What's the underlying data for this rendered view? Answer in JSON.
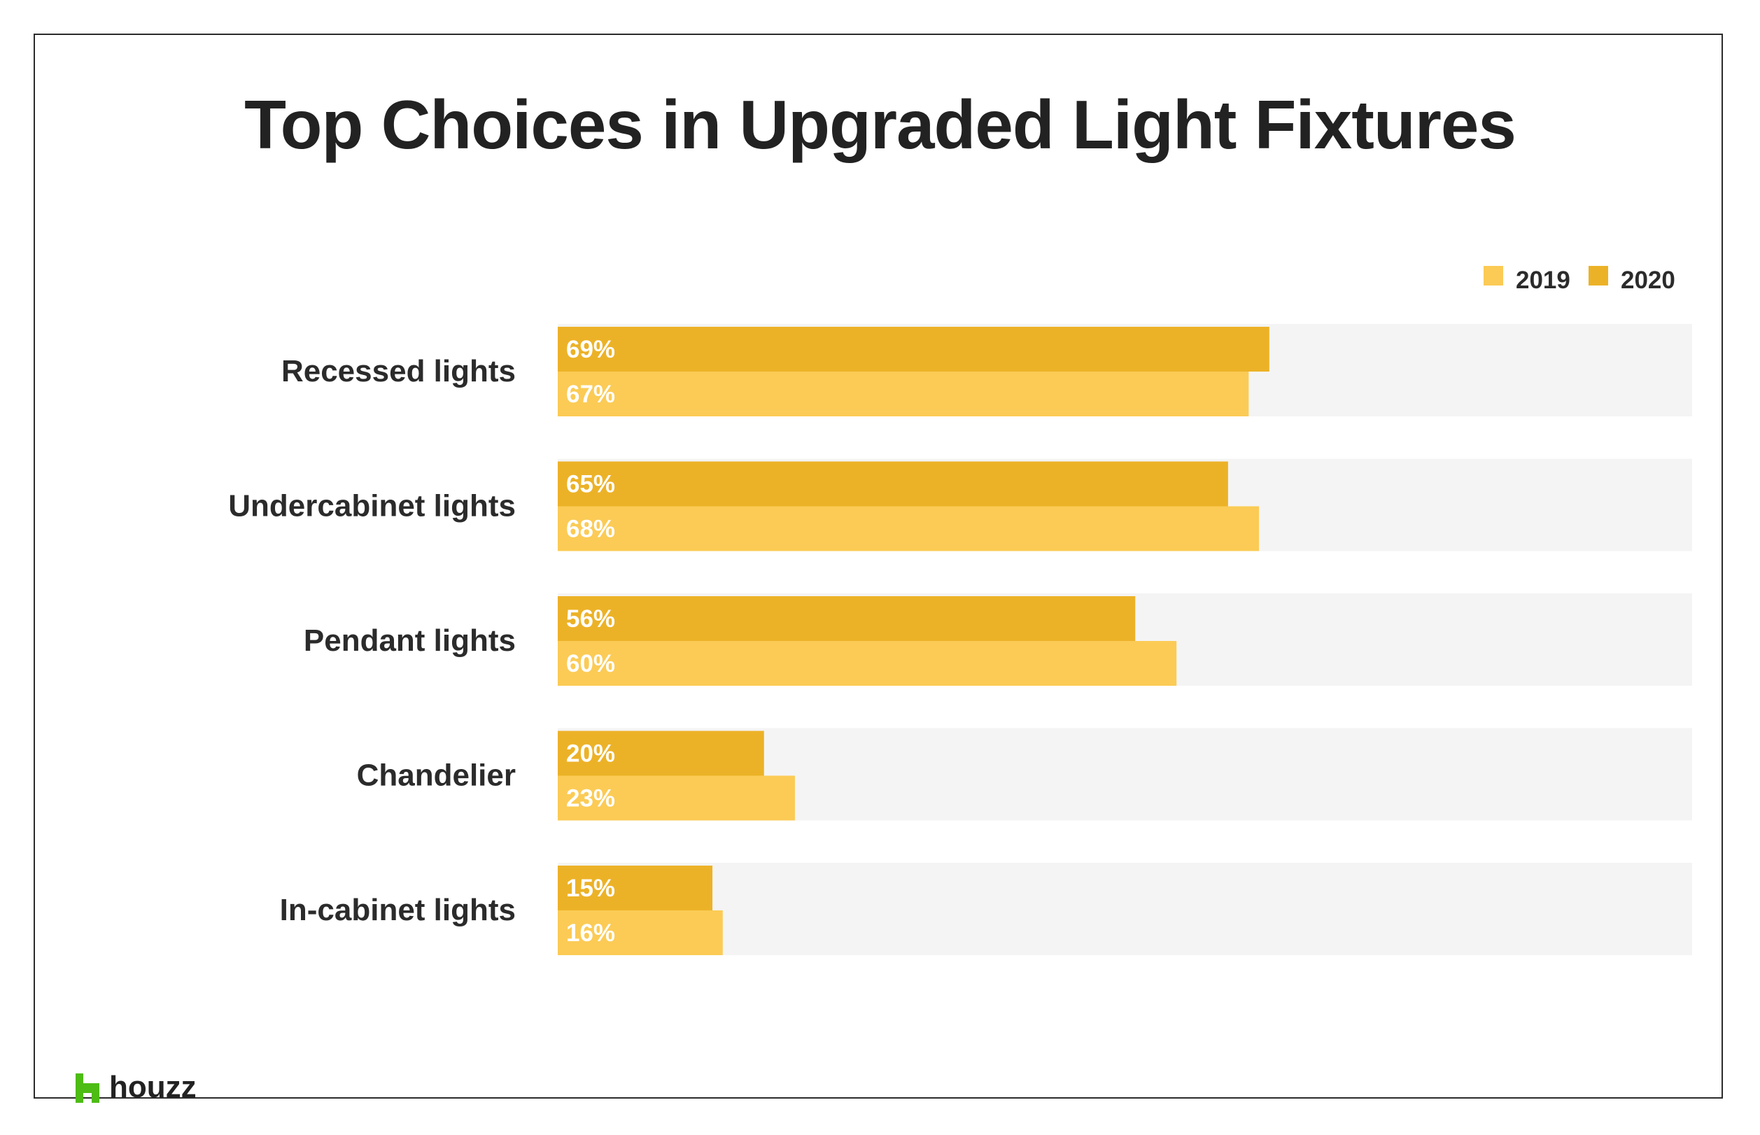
{
  "brand": {
    "logo_text": "houzz",
    "logo_color": "#4dbc15"
  },
  "chart_data": {
    "type": "bar",
    "orientation": "horizontal",
    "title": "Top Choices in Upgraded Light Fixtures",
    "categories": [
      "Recessed lights",
      "Undercabinet lights",
      "Pendant lights",
      "Chandelier",
      "In-cabinet lights"
    ],
    "series": [
      {
        "name": "2020",
        "values": [
          69,
          65,
          56,
          20,
          15
        ],
        "labels": [
          "69%",
          "65%",
          "56%",
          "20%",
          "15%"
        ],
        "color": "#ecb227"
      },
      {
        "name": "2019",
        "values": [
          67,
          68,
          60,
          23,
          16
        ],
        "labels": [
          "67%",
          "68%",
          "60%",
          "23%",
          "16%"
        ],
        "color": "#fbcb55"
      }
    ],
    "xlim": [
      0,
      110
    ],
    "track_color": "#f4f4f4",
    "legend": {
      "position": "top-right",
      "order": [
        "2019",
        "2020"
      ]
    },
    "grid": false
  }
}
